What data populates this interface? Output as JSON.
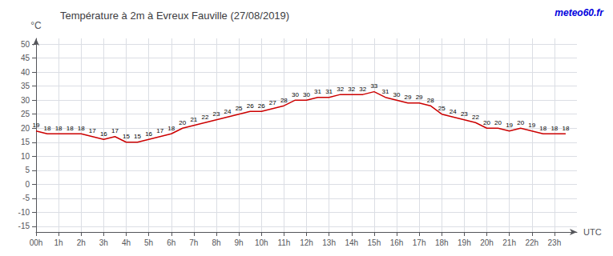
{
  "chart_data": {
    "type": "line",
    "title": "Température à 2m à Evreux Fauville (27/08/2019)",
    "xlabel": "UTC",
    "ylabel": "°C",
    "annotations": [
      {
        "text": "meteo60.fr",
        "color": "#0000dd"
      }
    ],
    "x": [
      0,
      0.5,
      1,
      1.5,
      2,
      2.5,
      3,
      3.5,
      4,
      4.5,
      5,
      5.5,
      6,
      6.5,
      7,
      7.5,
      8,
      8.5,
      9,
      9.5,
      10,
      10.5,
      11,
      11.5,
      12,
      12.5,
      13,
      13.5,
      14,
      14.5,
      15,
      15.5,
      16,
      16.5,
      17,
      17.5,
      18,
      18.5,
      19,
      19.5,
      20,
      20.5,
      21,
      21.5,
      22,
      22.5,
      23,
      23.5
    ],
    "values": [
      19,
      18,
      18,
      18,
      18,
      17,
      16,
      17,
      15,
      15,
      16,
      17,
      18,
      20,
      21,
      22,
      23,
      24,
      25,
      26,
      26,
      27,
      28,
      30,
      30,
      31,
      31,
      32,
      32,
      32,
      33,
      31,
      30,
      29,
      29,
      28,
      25,
      24,
      23,
      22,
      20,
      20,
      19,
      20,
      19,
      18,
      18,
      18
    ],
    "color": "#cc0000",
    "xlim": [
      0,
      24
    ],
    "xticks": [
      {
        "value": 0,
        "label": "00h"
      },
      {
        "value": 1,
        "label": "1h"
      },
      {
        "value": 2,
        "label": "2h"
      },
      {
        "value": 3,
        "label": "3h"
      },
      {
        "value": 4,
        "label": "4h"
      },
      {
        "value": 5,
        "label": "5h"
      },
      {
        "value": 6,
        "label": "6h"
      },
      {
        "value": 7,
        "label": "7h"
      },
      {
        "value": 8,
        "label": "8h"
      },
      {
        "value": 9,
        "label": "9h"
      },
      {
        "value": 10,
        "label": "10h"
      },
      {
        "value": 11,
        "label": "11h"
      },
      {
        "value": 12,
        "label": "12h"
      },
      {
        "value": 13,
        "label": "13h"
      },
      {
        "value": 14,
        "label": "14h"
      },
      {
        "value": 15,
        "label": "15h"
      },
      {
        "value": 16,
        "label": "16h"
      },
      {
        "value": 17,
        "label": "17h"
      },
      {
        "value": 18,
        "label": "18h"
      },
      {
        "value": 19,
        "label": "19h"
      },
      {
        "value": 20,
        "label": "20h"
      },
      {
        "value": 21,
        "label": "21h"
      },
      {
        "value": 22,
        "label": "22h"
      },
      {
        "value": 23,
        "label": "23h"
      }
    ],
    "ylim": [
      -17,
      52
    ],
    "yticks": [
      -15,
      -10,
      -5,
      0,
      5,
      10,
      15,
      20,
      25,
      30,
      35,
      40,
      45,
      50
    ],
    "grid": true,
    "data_labels": true
  }
}
